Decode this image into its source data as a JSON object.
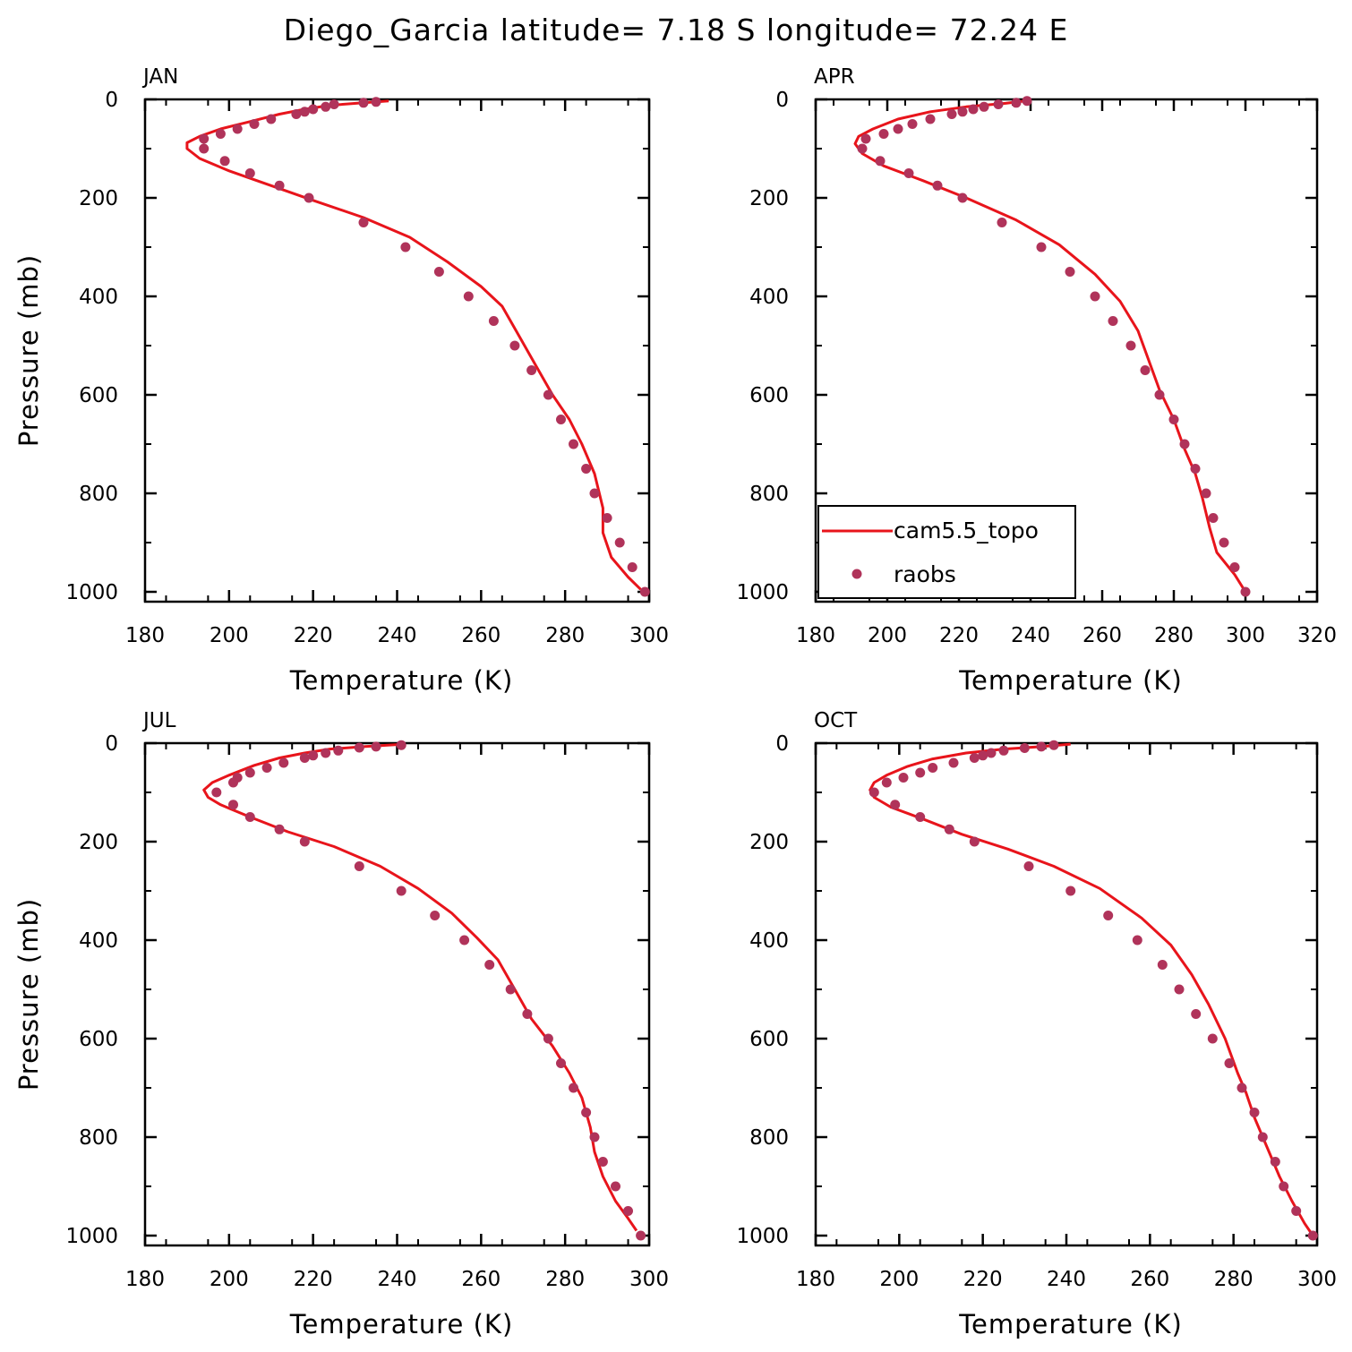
{
  "title": "Diego_Garcia  latitude= 7.18 S longitude= 72.24 E",
  "colors": {
    "model": "#e8141b",
    "obs": "#b0335a",
    "axis": "#000000"
  },
  "legend": {
    "placement": "bottom-left of APR panel",
    "model_label": "cam5.5_topo",
    "obs_label": "raobs"
  },
  "chart_data": [
    {
      "type": "line",
      "panel": "JAN",
      "xlabel": "Temperature (K)",
      "ylabel": "Pressure (mb)",
      "xlim": [
        180,
        300
      ],
      "ylim": [
        1000,
        0
      ],
      "y_reversed": true,
      "xticks": [
        180,
        200,
        220,
        240,
        260,
        280,
        300
      ],
      "yticks": [
        0,
        200,
        400,
        600,
        800,
        1000
      ],
      "series": [
        {
          "name": "cam5.5_topo",
          "kind": "line",
          "points": [
            [
              238,
              3
            ],
            [
              232,
              7
            ],
            [
              224,
              12
            ],
            [
              218,
              20
            ],
            [
              212,
              30
            ],
            [
              205,
              45
            ],
            [
              198,
              60
            ],
            [
              193,
              75
            ],
            [
              190,
              88
            ],
            [
              190,
              100
            ],
            [
              193,
              120
            ],
            [
              200,
              145
            ],
            [
              210,
              175
            ],
            [
              220,
              205
            ],
            [
              232,
              240
            ],
            [
              243,
              280
            ],
            [
              252,
              330
            ],
            [
              260,
              380
            ],
            [
              265,
              420
            ],
            [
              269,
              480
            ],
            [
              273,
              540
            ],
            [
              277,
              600
            ],
            [
              281,
              650
            ],
            [
              284,
              700
            ],
            [
              287,
              760
            ],
            [
              289,
              830
            ],
            [
              289,
              880
            ],
            [
              291,
              930
            ],
            [
              295,
              970
            ],
            [
              298,
              995
            ]
          ]
        },
        {
          "name": "raobs",
          "kind": "scatter",
          "points": [
            [
              235,
              5
            ],
            [
              232,
              7
            ],
            [
              225,
              10
            ],
            [
              223,
              15
            ],
            [
              220,
              20
            ],
            [
              218,
              25
            ],
            [
              216,
              30
            ],
            [
              210,
              40
            ],
            [
              206,
              50
            ],
            [
              202,
              60
            ],
            [
              198,
              70
            ],
            [
              194,
              80
            ],
            [
              194,
              100
            ],
            [
              199,
              125
            ],
            [
              205,
              150
            ],
            [
              212,
              175
            ],
            [
              219,
              200
            ],
            [
              232,
              250
            ],
            [
              242,
              300
            ],
            [
              250,
              350
            ],
            [
              257,
              400
            ],
            [
              263,
              450
            ],
            [
              268,
              500
            ],
            [
              272,
              550
            ],
            [
              276,
              600
            ],
            [
              279,
              650
            ],
            [
              282,
              700
            ],
            [
              285,
              750
            ],
            [
              287,
              800
            ],
            [
              290,
              850
            ],
            [
              293,
              900
            ],
            [
              296,
              950
            ],
            [
              299,
              1000
            ]
          ]
        }
      ]
    },
    {
      "type": "line",
      "panel": "APR",
      "xlabel": "Temperature (K)",
      "ylabel": "",
      "xlim": [
        180,
        320
      ],
      "ylim": [
        1000,
        0
      ],
      "y_reversed": true,
      "xticks": [
        180,
        200,
        220,
        240,
        260,
        280,
        300,
        320
      ],
      "yticks": [
        0,
        200,
        400,
        600,
        800,
        1000
      ],
      "series": [
        {
          "name": "cam5.5_topo",
          "kind": "line",
          "points": [
            [
              240,
              2
            ],
            [
              233,
              8
            ],
            [
              222,
              15
            ],
            [
              212,
              25
            ],
            [
              203,
              40
            ],
            [
              196,
              60
            ],
            [
              192,
              75
            ],
            [
              191,
              90
            ],
            [
              193,
              110
            ],
            [
              199,
              135
            ],
            [
              210,
              165
            ],
            [
              222,
              200
            ],
            [
              236,
              245
            ],
            [
              248,
              295
            ],
            [
              258,
              355
            ],
            [
              265,
              410
            ],
            [
              270,
              470
            ],
            [
              273,
              530
            ],
            [
              276,
              590
            ],
            [
              280,
              650
            ],
            [
              283,
              710
            ],
            [
              286,
              760
            ],
            [
              288,
              810
            ],
            [
              290,
              870
            ],
            [
              292,
              920
            ],
            [
              297,
              965
            ],
            [
              300,
              1000
            ]
          ]
        },
        {
          "name": "raobs",
          "kind": "scatter",
          "points": [
            [
              239,
              3
            ],
            [
              236,
              7
            ],
            [
              231,
              10
            ],
            [
              227,
              15
            ],
            [
              224,
              20
            ],
            [
              221,
              25
            ],
            [
              218,
              30
            ],
            [
              212,
              40
            ],
            [
              207,
              50
            ],
            [
              203,
              60
            ],
            [
              199,
              70
            ],
            [
              194,
              80
            ],
            [
              193,
              100
            ],
            [
              198,
              125
            ],
            [
              206,
              150
            ],
            [
              214,
              175
            ],
            [
              221,
              200
            ],
            [
              232,
              250
            ],
            [
              243,
              300
            ],
            [
              251,
              350
            ],
            [
              258,
              400
            ],
            [
              263,
              450
            ],
            [
              268,
              500
            ],
            [
              272,
              550
            ],
            [
              276,
              600
            ],
            [
              280,
              650
            ],
            [
              283,
              700
            ],
            [
              286,
              750
            ],
            [
              289,
              800
            ],
            [
              291,
              850
            ],
            [
              294,
              900
            ],
            [
              297,
              950
            ],
            [
              300,
              1000
            ]
          ]
        }
      ]
    },
    {
      "type": "line",
      "panel": "JUL",
      "xlabel": "Temperature (K)",
      "ylabel": "Pressure (mb)",
      "xlim": [
        180,
        300
      ],
      "ylim": [
        1000,
        0
      ],
      "y_reversed": true,
      "xticks": [
        180,
        200,
        220,
        240,
        260,
        280,
        300
      ],
      "yticks": [
        0,
        200,
        400,
        600,
        800,
        1000
      ],
      "series": [
        {
          "name": "cam5.5_topo",
          "kind": "line",
          "points": [
            [
              240,
              3
            ],
            [
              232,
              7
            ],
            [
              224,
              12
            ],
            [
              218,
              20
            ],
            [
              212,
              30
            ],
            [
              206,
              45
            ],
            [
              200,
              65
            ],
            [
              196,
              80
            ],
            [
              194,
              95
            ],
            [
              195,
              110
            ],
            [
              198,
              125
            ],
            [
              205,
              150
            ],
            [
              214,
              180
            ],
            [
              225,
              210
            ],
            [
              236,
              250
            ],
            [
              245,
              295
            ],
            [
              253,
              345
            ],
            [
              259,
              395
            ],
            [
              264,
              440
            ],
            [
              268,
              500
            ],
            [
              272,
              560
            ],
            [
              277,
              615
            ],
            [
              281,
              670
            ],
            [
              284,
              720
            ],
            [
              286,
              780
            ],
            [
              287,
              830
            ],
            [
              289,
              880
            ],
            [
              292,
              930
            ],
            [
              295,
              965
            ],
            [
              297,
              990
            ]
          ]
        },
        {
          "name": "raobs",
          "kind": "scatter",
          "points": [
            [
              241,
              4
            ],
            [
              235,
              7
            ],
            [
              231,
              9
            ],
            [
              226,
              15
            ],
            [
              223,
              20
            ],
            [
              220,
              25
            ],
            [
              218,
              30
            ],
            [
              213,
              40
            ],
            [
              209,
              50
            ],
            [
              205,
              60
            ],
            [
              202,
              70
            ],
            [
              201,
              80
            ],
            [
              197,
              100
            ],
            [
              201,
              125
            ],
            [
              205,
              150
            ],
            [
              212,
              175
            ],
            [
              218,
              200
            ],
            [
              231,
              250
            ],
            [
              241,
              300
            ],
            [
              249,
              350
            ],
            [
              256,
              400
            ],
            [
              262,
              450
            ],
            [
              267,
              500
            ],
            [
              271,
              550
            ],
            [
              276,
              600
            ],
            [
              279,
              650
            ],
            [
              282,
              700
            ],
            [
              285,
              750
            ],
            [
              287,
              800
            ],
            [
              289,
              850
            ],
            [
              292,
              900
            ],
            [
              295,
              950
            ],
            [
              298,
              1000
            ]
          ]
        }
      ]
    },
    {
      "type": "line",
      "panel": "OCT",
      "xlabel": "Temperature (K)",
      "ylabel": "",
      "xlim": [
        180,
        300
      ],
      "ylim": [
        1000,
        0
      ],
      "y_reversed": true,
      "xticks": [
        180,
        200,
        220,
        240,
        260,
        280,
        300
      ],
      "yticks": [
        0,
        200,
        400,
        600,
        800,
        1000
      ],
      "series": [
        {
          "name": "cam5.5_topo",
          "kind": "line",
          "points": [
            [
              241,
              2
            ],
            [
              234,
              7
            ],
            [
              225,
              12
            ],
            [
              216,
              20
            ],
            [
              208,
              32
            ],
            [
              202,
              47
            ],
            [
              197,
              65
            ],
            [
              194,
              80
            ],
            [
              193,
              95
            ],
            [
              194,
              110
            ],
            [
              198,
              130
            ],
            [
              206,
              155
            ],
            [
              215,
              185
            ],
            [
              226,
              215
            ],
            [
              237,
              250
            ],
            [
              248,
              295
            ],
            [
              258,
              355
            ],
            [
              265,
              410
            ],
            [
              270,
              470
            ],
            [
              274,
              530
            ],
            [
              278,
              600
            ],
            [
              281,
              670
            ],
            [
              283,
              710
            ],
            [
              285,
              760
            ],
            [
              288,
              820
            ],
            [
              291,
              880
            ],
            [
              294,
              930
            ],
            [
              297,
              975
            ],
            [
              299,
              1000
            ]
          ]
        },
        {
          "name": "raobs",
          "kind": "scatter",
          "points": [
            [
              237,
              4
            ],
            [
              234,
              7
            ],
            [
              230,
              10
            ],
            [
              225,
              15
            ],
            [
              222,
              20
            ],
            [
              220,
              25
            ],
            [
              218,
              30
            ],
            [
              213,
              40
            ],
            [
              208,
              50
            ],
            [
              205,
              60
            ],
            [
              201,
              70
            ],
            [
              197,
              80
            ],
            [
              194,
              100
            ],
            [
              199,
              125
            ],
            [
              205,
              150
            ],
            [
              212,
              175
            ],
            [
              218,
              200
            ],
            [
              231,
              250
            ],
            [
              241,
              300
            ],
            [
              250,
              350
            ],
            [
              257,
              400
            ],
            [
              263,
              450
            ],
            [
              267,
              500
            ],
            [
              271,
              550
            ],
            [
              275,
              600
            ],
            [
              279,
              650
            ],
            [
              282,
              700
            ],
            [
              285,
              750
            ],
            [
              287,
              800
            ],
            [
              290,
              850
            ],
            [
              292,
              900
            ],
            [
              295,
              950
            ],
            [
              299,
              1000
            ]
          ]
        }
      ]
    }
  ]
}
